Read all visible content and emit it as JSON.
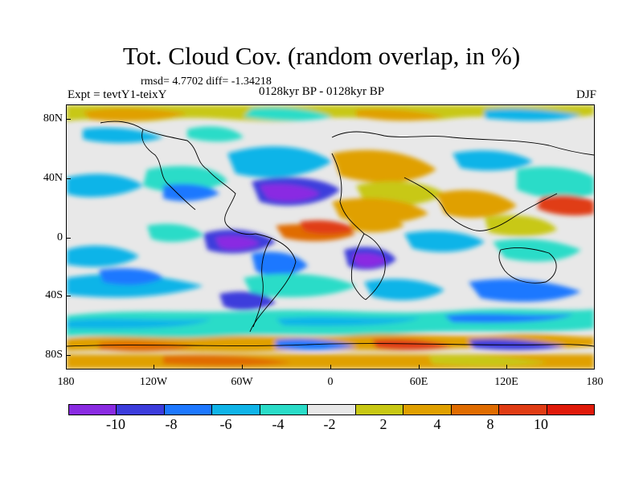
{
  "title": "Tot. Cloud Cov. (random overlap, in %)",
  "stats": "rmsd= 4.7702 diff= -1.34218",
  "experiment": "Expt = tevtY1-teixY",
  "period": "0128kyr BP - 0128kyr BP",
  "season": "DJF",
  "lat_labels": [
    "80N",
    "40N",
    "0",
    "40S",
    "80S"
  ],
  "lon_labels": [
    "180",
    "120W",
    "60W",
    "0",
    "60E",
    "120E",
    "180"
  ],
  "colorbar": {
    "colors": [
      "#8a2be2",
      "#3c3cdc",
      "#1e78ff",
      "#10b4e8",
      "#2adcc8",
      "#e8e8e8",
      "#c8c814",
      "#e0a000",
      "#e06c00",
      "#e03c14",
      "#e01a0a"
    ],
    "labels": [
      "-10",
      "-8",
      "-6",
      "-4",
      "-2",
      "2",
      "4",
      "8",
      "10"
    ]
  }
}
